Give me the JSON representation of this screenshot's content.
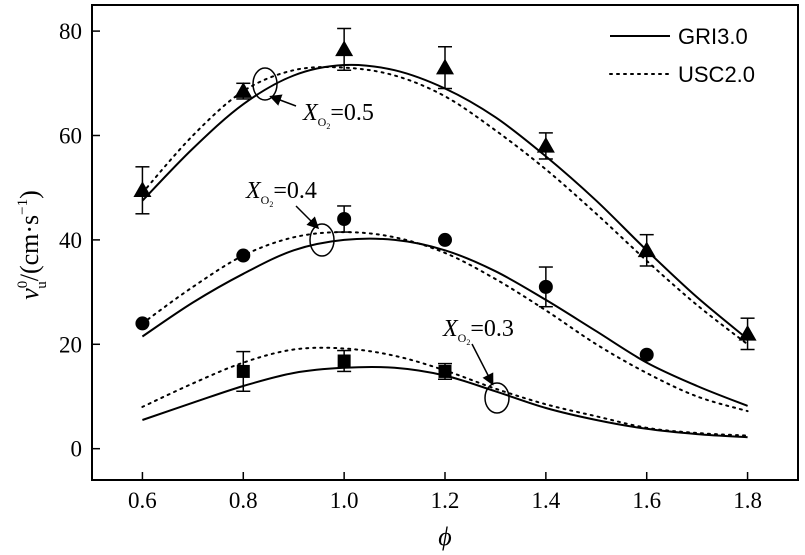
{
  "chart_data": {
    "type": "line",
    "xlabel": "ϕ",
    "ylabel": {
      "base": "v",
      "sup": "0",
      "sub": "u",
      "unit": "/(cm·s",
      "unit_sup": "−1",
      "close": ")"
    },
    "xlim": [
      0.5,
      1.9
    ],
    "ylim": [
      -6,
      85
    ],
    "x_ticks": [
      "0.6",
      "0.8",
      "1.0",
      "1.2",
      "1.4",
      "1.6",
      "1.8"
    ],
    "y_ticks": [
      "0",
      "20",
      "40",
      "60",
      "80"
    ],
    "legend": {
      "position": "top-right",
      "entries": [
        {
          "label": "GRI3.0",
          "style": "solid"
        },
        {
          "label": "USC2.0",
          "style": "dotted"
        }
      ]
    },
    "groups": [
      {
        "label": "=0.5",
        "marker": "triangle",
        "experimental": [
          {
            "x": 0.6,
            "y": 49.5,
            "err": 4.5
          },
          {
            "x": 0.8,
            "y": 68.5,
            "err": 1.5
          },
          {
            "x": 1.0,
            "y": 76.5,
            "err": 4.0
          },
          {
            "x": 1.2,
            "y": 73.0,
            "err": 4.0
          },
          {
            "x": 1.4,
            "y": 58.0,
            "err": 2.5
          },
          {
            "x": 1.6,
            "y": 38.0,
            "err": 3.0
          },
          {
            "x": 1.8,
            "y": 22.0,
            "err": 3.0
          }
        ],
        "gri": {
          "x": [
            0.6,
            0.7,
            0.8,
            0.9,
            1.0,
            1.1,
            1.2,
            1.3,
            1.4,
            1.5,
            1.6,
            1.7,
            1.8
          ],
          "y": [
            47.5,
            57.5,
            66.0,
            71.5,
            73.5,
            72.5,
            69.0,
            63.5,
            56.0,
            47.5,
            38.0,
            29.0,
            21.0
          ]
        },
        "usc": {
          "x": [
            0.6,
            0.7,
            0.8,
            0.9,
            1.0,
            1.1,
            1.2,
            1.3,
            1.4,
            1.5,
            1.6,
            1.7,
            1.8
          ],
          "y": [
            49.0,
            60.0,
            68.5,
            72.5,
            73.0,
            71.5,
            67.5,
            61.0,
            53.5,
            45.0,
            36.0,
            27.5,
            20.0
          ]
        }
      },
      {
        "label": "=0.4",
        "marker": "circle",
        "experimental": [
          {
            "x": 0.6,
            "y": 24.0,
            "err": 0
          },
          {
            "x": 0.8,
            "y": 37.0,
            "err": 0
          },
          {
            "x": 1.0,
            "y": 44.0,
            "err": 2.5
          },
          {
            "x": 1.2,
            "y": 40.0,
            "err": 0
          },
          {
            "x": 1.4,
            "y": 31.0,
            "err": 3.8
          },
          {
            "x": 1.6,
            "y": 18.0,
            "err": 0
          }
        ],
        "gri": {
          "x": [
            0.6,
            0.7,
            0.8,
            0.9,
            1.0,
            1.1,
            1.2,
            1.3,
            1.4,
            1.5,
            1.6,
            1.7,
            1.8
          ],
          "y": [
            21.5,
            28.0,
            33.5,
            38.0,
            40.0,
            40.0,
            38.0,
            34.0,
            28.5,
            22.5,
            16.5,
            12.0,
            8.2
          ]
        },
        "usc": {
          "x": [
            0.6,
            0.7,
            0.8,
            0.9,
            1.0,
            1.1,
            1.2,
            1.3,
            1.4,
            1.5,
            1.6,
            1.7,
            1.8
          ],
          "y": [
            24.0,
            31.0,
            37.0,
            40.5,
            41.5,
            40.5,
            37.5,
            32.5,
            26.5,
            20.0,
            14.5,
            10.0,
            7.2
          ]
        }
      },
      {
        "label": "=0.3",
        "marker": "square",
        "experimental": [
          {
            "x": 0.8,
            "y": 14.8,
            "err": 3.8
          },
          {
            "x": 1.0,
            "y": 16.8,
            "err": 2.0
          },
          {
            "x": 1.2,
            "y": 14.8,
            "err": 1.5
          }
        ],
        "gri": {
          "x": [
            0.6,
            0.7,
            0.8,
            0.9,
            1.0,
            1.1,
            1.2,
            1.3,
            1.4,
            1.5,
            1.6,
            1.7,
            1.8
          ],
          "y": [
            5.5,
            8.8,
            12.0,
            14.5,
            15.5,
            15.5,
            14.0,
            11.0,
            7.8,
            5.5,
            3.8,
            2.8,
            2.2
          ]
        },
        "usc": {
          "x": [
            0.6,
            0.7,
            0.8,
            0.9,
            1.0,
            1.1,
            1.2,
            1.3,
            1.4,
            1.5,
            1.6,
            1.7,
            1.8
          ],
          "y": [
            8.0,
            12.5,
            16.5,
            19.0,
            19.2,
            17.8,
            15.0,
            11.5,
            8.5,
            6.2,
            4.0,
            3.0,
            2.5
          ]
        }
      }
    ]
  }
}
